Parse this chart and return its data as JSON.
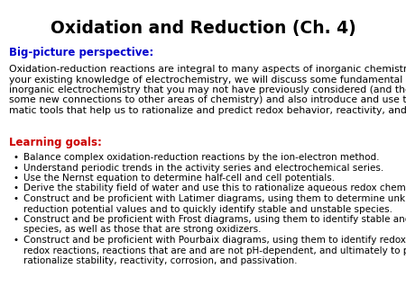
{
  "title": "Oxidation and Reduction (Ch. 4)",
  "title_fontsize": 13.5,
  "title_color": "#000000",
  "section1_label": "Big-picture perspective:",
  "section1_color": "#0000CC",
  "section1_fontsize": 8.5,
  "body_lines": [
    "Oxidation-reduction reactions are integral to many aspects of inorganic chemistry.  Building on",
    "your existing knowledge of electrochemistry, we will discuss some fundamental aspects of",
    "inorganic electrochemistry that you may not have previously considered (and therefore make",
    "some new connections to other areas of chemistry) and also introduce and use three diagram-",
    "matic tools that help us to rationalize and predict redox behavior, reactivity, and stability."
  ],
  "body_fontsize": 7.8,
  "body_color": "#000000",
  "section2_label": "Learning goals:",
  "section2_color": "#CC0000",
  "section2_fontsize": 8.5,
  "bullet_fontsize": 7.5,
  "bullet_color": "#000000",
  "bullets": [
    [
      "Balance complex oxidation-reduction reactions by the ion-electron method."
    ],
    [
      "Understand periodic trends in the activity series and electrochemical series."
    ],
    [
      "Use the Nernst equation to determine half-cell and cell potentials."
    ],
    [
      "Derive the stability field of water and use this to rationalize aqueous redox chemistry."
    ],
    [
      "Construct and be proficient with Latimer diagrams, using them to determine unknown",
      "reduction potential values and to quickly identify stable and unstable species."
    ],
    [
      "Construct and be proficient with Frost diagrams, using them to identify stable and unstable",
      "species, as well as those that are strong oxidizers."
    ],
    [
      "Construct and be proficient with Pourbaix diagrams, using them to identify redox and non-",
      "redox reactions, reactions that are and are not pH-dependent, and ultimately to predict and",
      "rationalize stability, reactivity, corrosion, and passivation."
    ]
  ],
  "background_color": "#ffffff"
}
